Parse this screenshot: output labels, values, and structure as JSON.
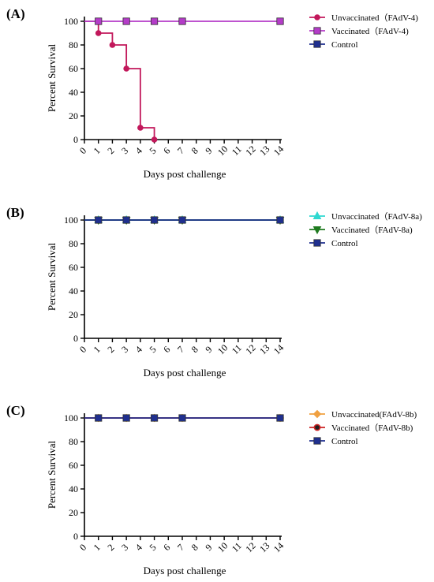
{
  "chart_data": [
    {
      "panel": "(A)",
      "type": "line",
      "xlabel": "Days post challenge",
      "ylabel": "Percent Survival",
      "xlim": [
        0,
        14
      ],
      "ylim": [
        0,
        100
      ],
      "xticks": [
        0,
        1,
        2,
        3,
        4,
        5,
        6,
        7,
        8,
        9,
        10,
        11,
        12,
        13,
        14
      ],
      "yticks": [
        0,
        20,
        40,
        60,
        80,
        100
      ],
      "grid": false,
      "legend_placement": "right",
      "series": [
        {
          "name": "Unvaccinated（FAdV-4)",
          "color": "#c2185b",
          "marker": "circle",
          "step": true,
          "x": [
            0,
            1,
            2,
            3,
            4,
            5
          ],
          "y": [
            100,
            90,
            80,
            60,
            10,
            0
          ]
        },
        {
          "name": "Vaccinated（FAdV-4)",
          "color": "#b43cc8",
          "marker": "square",
          "step": true,
          "x": [
            0,
            1,
            3,
            5,
            7,
            14
          ],
          "y": [
            100,
            100,
            100,
            100,
            100,
            100
          ]
        },
        {
          "name": "Control",
          "color": "#1f2f8f",
          "marker": "square",
          "step": true,
          "hidden_in_plot": true,
          "x": [],
          "y": []
        }
      ]
    },
    {
      "panel": "(B)",
      "type": "line",
      "xlabel": "Days post challenge",
      "ylabel": "Percent Survival",
      "xlim": [
        0,
        14
      ],
      "ylim": [
        0,
        100
      ],
      "xticks": [
        0,
        1,
        2,
        3,
        4,
        5,
        6,
        7,
        8,
        9,
        10,
        11,
        12,
        13,
        14
      ],
      "yticks": [
        0,
        20,
        40,
        60,
        80,
        100
      ],
      "grid": false,
      "legend_placement": "right",
      "series": [
        {
          "name": "Unvaccinated（FAdV-8a)",
          "color": "#2ed8d0",
          "marker": "triangle-up",
          "step": true,
          "x": [
            0,
            1,
            3,
            5,
            7,
            14
          ],
          "y": [
            100,
            100,
            100,
            100,
            100,
            100
          ]
        },
        {
          "name": "Vaccinated（FAdV-8a)",
          "color": "#1e7a1e",
          "marker": "triangle-down",
          "step": true,
          "x": [
            0,
            1,
            3,
            5,
            7,
            14
          ],
          "y": [
            100,
            100,
            100,
            100,
            100,
            100
          ]
        },
        {
          "name": "Control",
          "color": "#1f2f8f",
          "marker": "square",
          "step": true,
          "x": [
            0,
            1,
            3,
            5,
            7,
            14
          ],
          "y": [
            100,
            100,
            100,
            100,
            100,
            100
          ]
        }
      ]
    },
    {
      "panel": "(C)",
      "type": "line",
      "xlabel": "Days post challenge",
      "ylabel": "Percent Survival",
      "xlim": [
        0,
        14
      ],
      "ylim": [
        0,
        100
      ],
      "xticks": [
        0,
        1,
        2,
        3,
        4,
        5,
        6,
        7,
        8,
        9,
        10,
        11,
        12,
        13,
        14
      ],
      "yticks": [
        0,
        20,
        40,
        60,
        80,
        100
      ],
      "grid": false,
      "legend_placement": "right",
      "series": [
        {
          "name": "Unvaccinated(FAdV-8b)",
          "color": "#f0a040",
          "marker": "diamond",
          "step": true,
          "x": [
            0,
            1,
            3,
            5,
            7,
            14
          ],
          "y": [
            100,
            100,
            100,
            100,
            100,
            100
          ]
        },
        {
          "name": "Vaccinated（FAdV-8b)",
          "color": "#cc2222",
          "marker": "circle-open",
          "step": true,
          "x": [
            0,
            1,
            3,
            5,
            7,
            14
          ],
          "y": [
            100,
            100,
            100,
            100,
            100,
            100
          ]
        },
        {
          "name": "Control",
          "color": "#1f2f8f",
          "marker": "square",
          "step": true,
          "x": [
            0,
            1,
            3,
            5,
            7,
            14
          ],
          "y": [
            100,
            100,
            100,
            100,
            100,
            100
          ]
        }
      ]
    }
  ]
}
